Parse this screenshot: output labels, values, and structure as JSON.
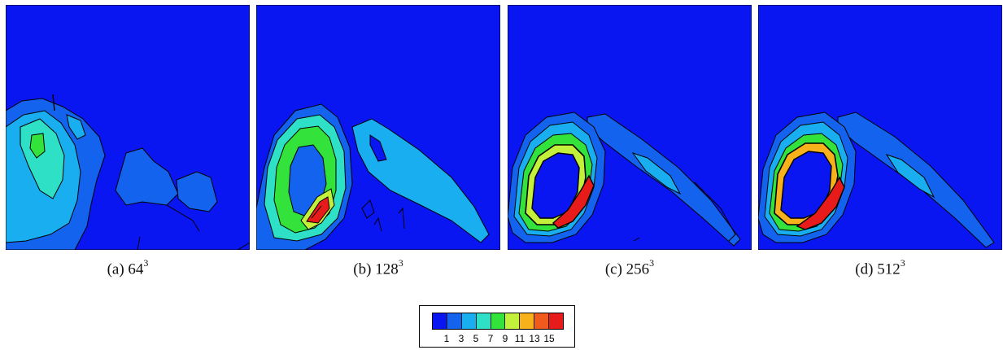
{
  "panels": [
    {
      "id": "a",
      "caption_prefix": "(a) 64",
      "caption_exp": "3"
    },
    {
      "id": "b",
      "caption_prefix": "(b) 128",
      "caption_exp": "3"
    },
    {
      "id": "c",
      "caption_prefix": "(c) 256",
      "caption_exp": "3"
    },
    {
      "id": "d",
      "caption_prefix": "(d) 512",
      "caption_exp": "3"
    }
  ],
  "colorbar": {
    "ticks": [
      "1",
      "3",
      "5",
      "7",
      "9",
      "11",
      "13",
      "15"
    ],
    "colors": [
      "#0a16f2",
      "#1463ef",
      "#19aef0",
      "#2ee0c6",
      "#33e23a",
      "#c2f03b",
      "#f7b21b",
      "#f05a1c",
      "#e81b1b"
    ]
  }
}
